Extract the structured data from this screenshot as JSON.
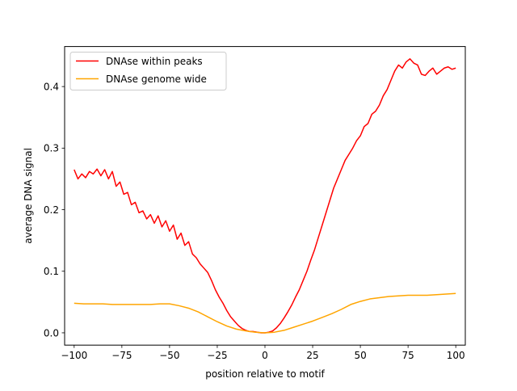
{
  "chart_data": {
    "type": "line",
    "title": "",
    "xlabel": "position relative to motif",
    "ylabel": "average DNA signal",
    "xlim": [
      -105,
      105
    ],
    "ylim": [
      -0.02,
      0.465
    ],
    "grid": false,
    "legend_position": "top-left",
    "x_ticks": [
      -100,
      -75,
      -50,
      -25,
      0,
      25,
      50,
      75,
      100
    ],
    "x_tick_labels": [
      "−100",
      "−75",
      "−50",
      "−25",
      "0",
      "25",
      "50",
      "75",
      "100"
    ],
    "y_ticks": [
      0.0,
      0.1,
      0.2,
      0.3,
      0.4
    ],
    "y_tick_labels": [
      "0.0",
      "0.1",
      "0.2",
      "0.3",
      "0.4"
    ],
    "series": [
      {
        "name": "DNAse within peaks",
        "color": "#ff0000",
        "x": [
          -100,
          -98,
          -96,
          -94,
          -92,
          -90,
          -88,
          -86,
          -84,
          -82,
          -80,
          -78,
          -76,
          -74,
          -72,
          -70,
          -68,
          -66,
          -64,
          -62,
          -60,
          -58,
          -56,
          -54,
          -52,
          -50,
          -48,
          -46,
          -44,
          -42,
          -40,
          -38,
          -36,
          -34,
          -32,
          -30,
          -28,
          -26,
          -24,
          -22,
          -20,
          -18,
          -16,
          -14,
          -12,
          -10,
          -8,
          -6,
          -4,
          -2,
          0,
          2,
          4,
          6,
          8,
          10,
          12,
          14,
          16,
          18,
          20,
          22,
          24,
          26,
          28,
          30,
          32,
          34,
          36,
          38,
          40,
          42,
          44,
          46,
          48,
          50,
          52,
          54,
          56,
          58,
          60,
          62,
          64,
          66,
          68,
          70,
          72,
          74,
          76,
          78,
          80,
          82,
          84,
          86,
          88,
          90,
          92,
          94,
          96,
          98,
          100
        ],
        "y": [
          0.265,
          0.25,
          0.258,
          0.252,
          0.262,
          0.258,
          0.266,
          0.255,
          0.265,
          0.25,
          0.262,
          0.238,
          0.245,
          0.225,
          0.228,
          0.208,
          0.212,
          0.195,
          0.198,
          0.185,
          0.192,
          0.178,
          0.19,
          0.172,
          0.182,
          0.165,
          0.175,
          0.152,
          0.162,
          0.142,
          0.148,
          0.128,
          0.122,
          0.112,
          0.105,
          0.098,
          0.085,
          0.07,
          0.058,
          0.048,
          0.036,
          0.026,
          0.019,
          0.012,
          0.007,
          0.004,
          0.002,
          0.002,
          0.001,
          0.0,
          0.0,
          0.001,
          0.003,
          0.008,
          0.015,
          0.024,
          0.034,
          0.045,
          0.058,
          0.07,
          0.085,
          0.1,
          0.118,
          0.135,
          0.155,
          0.175,
          0.195,
          0.215,
          0.235,
          0.25,
          0.265,
          0.28,
          0.29,
          0.3,
          0.312,
          0.32,
          0.335,
          0.34,
          0.355,
          0.36,
          0.37,
          0.385,
          0.395,
          0.41,
          0.425,
          0.435,
          0.43,
          0.44,
          0.445,
          0.438,
          0.435,
          0.42,
          0.418,
          0.425,
          0.43,
          0.42,
          0.425,
          0.43,
          0.432,
          0.428,
          0.43
        ]
      },
      {
        "name": "DNAse genome wide",
        "color": "#ffa500",
        "x": [
          -100,
          -95,
          -90,
          -85,
          -80,
          -75,
          -70,
          -65,
          -60,
          -55,
          -50,
          -45,
          -40,
          -35,
          -30,
          -25,
          -20,
          -15,
          -10,
          -5,
          0,
          5,
          10,
          15,
          20,
          25,
          30,
          35,
          40,
          45,
          50,
          55,
          60,
          65,
          70,
          75,
          80,
          85,
          90,
          95,
          100
        ],
        "y": [
          0.048,
          0.047,
          0.047,
          0.047,
          0.046,
          0.046,
          0.046,
          0.046,
          0.046,
          0.047,
          0.047,
          0.044,
          0.04,
          0.034,
          0.026,
          0.018,
          0.011,
          0.006,
          0.003,
          0.001,
          0.0,
          0.001,
          0.004,
          0.009,
          0.014,
          0.019,
          0.025,
          0.031,
          0.038,
          0.046,
          0.051,
          0.055,
          0.057,
          0.059,
          0.06,
          0.061,
          0.061,
          0.061,
          0.062,
          0.063,
          0.064
        ]
      }
    ]
  }
}
